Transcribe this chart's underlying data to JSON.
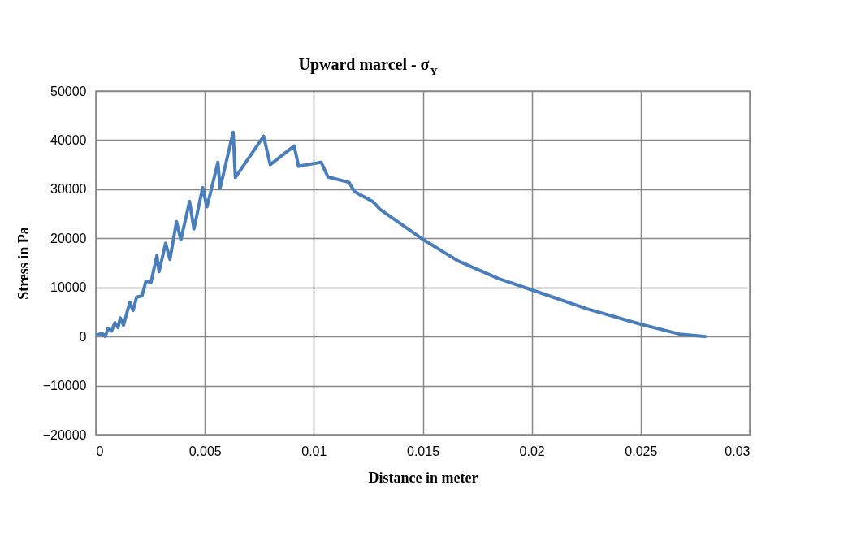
{
  "chart_data": {
    "type": "line",
    "title": "Upward marcel - σ$_{Y}$",
    "xlabel": "Distance in meter",
    "ylabel": "Stress in Pa",
    "xlim": [
      0,
      0.03
    ],
    "xticks": [
      0,
      0.005,
      0.01,
      0.015,
      0.02,
      0.025,
      0.03
    ],
    "ylim": [
      -20000,
      50000
    ],
    "yticks": [
      -20000,
      -10000,
      0,
      10000,
      20000,
      30000,
      40000,
      50000
    ],
    "grid": true,
    "legend": false,
    "marker": "none",
    "line_style": "solid",
    "series": [
      {
        "color": "#4a7ebb",
        "x": [
          0,
          0.00029,
          0.00043,
          0.00056,
          0.00072,
          0.00087,
          0.00102,
          0.00112,
          0.00127,
          0.00156,
          0.00171,
          0.00187,
          0.00212,
          0.0023,
          0.00253,
          0.0028,
          0.0029,
          0.0032,
          0.0034,
          0.0037,
          0.0039,
          0.0043,
          0.0045,
          0.0049,
          0.0051,
          0.0056,
          0.0057,
          0.0063,
          0.0064,
          0.0077,
          0.008,
          0.0091,
          0.0093,
          0.01034,
          0.01065,
          0.01162,
          0.01187,
          0.0127,
          0.01304,
          0.015,
          0.01662,
          0.01848,
          0.02,
          0.02257,
          0.025,
          0.02678,
          0.028
        ],
        "values": [
          300,
          600,
          0,
          1700,
          1100,
          2800,
          1800,
          3800,
          2300,
          7000,
          5300,
          8000,
          8300,
          11300,
          11000,
          16500,
          13200,
          19000,
          15700,
          23400,
          19700,
          27500,
          21900,
          30300,
          26400,
          35500,
          30200,
          41600,
          32400,
          40800,
          35000,
          38800,
          34700,
          35500,
          32500,
          31400,
          29500,
          27500,
          25900,
          19800,
          15400,
          11800,
          9500,
          5600,
          2500,
          500,
          0
        ]
      }
    ]
  }
}
